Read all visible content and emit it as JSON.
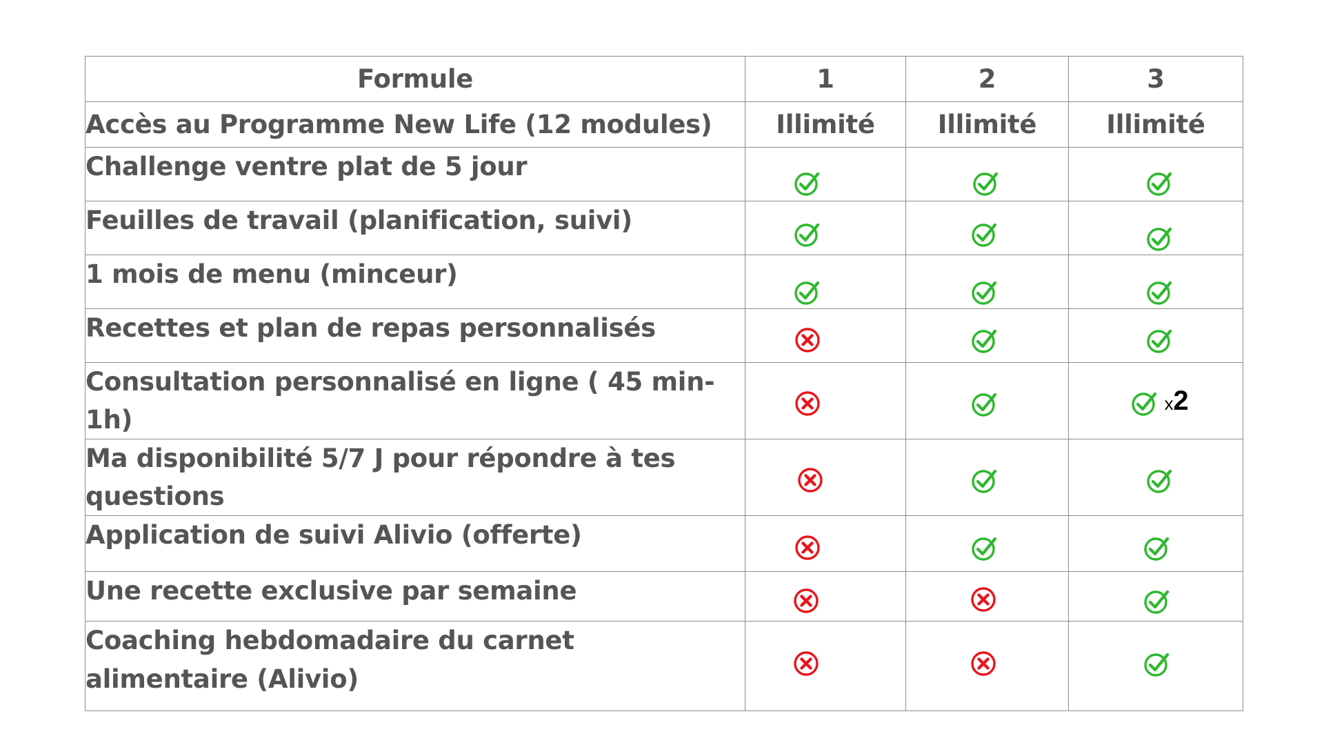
{
  "table": {
    "header": {
      "label": "Formule",
      "plans": [
        "1",
        "2",
        "3"
      ]
    },
    "rows": [
      {
        "label": "Accès au Programme New Life (12 modules)",
        "cells": [
          "Illimité",
          "Illimité",
          "Illimité"
        ]
      },
      {
        "label": "Challenge ventre plat de 5 jour",
        "cells": [
          "yes",
          "yes",
          "yes"
        ]
      },
      {
        "label": "Feuilles de travail (planification, suivi)",
        "cells": [
          "yes",
          "yes",
          "yes"
        ]
      },
      {
        "label": "1 mois de menu (minceur)",
        "cells": [
          "yes",
          "yes",
          "yes"
        ]
      },
      {
        "label": "Recettes et plan de repas personnalisés",
        "cells": [
          "no",
          "yes",
          "yes"
        ]
      },
      {
        "label": "Consultation personnalisé en ligne ( 45 min-1h)",
        "cells": [
          "no",
          "yes",
          "yes"
        ],
        "extra": {
          "prefix": "x",
          "value": "2"
        }
      },
      {
        "label": "Ma disponibilité 5/7 J pour répondre à tes questions",
        "cells": [
          "no",
          "yes",
          "yes"
        ]
      },
      {
        "label": "Application de suivi Alivio (offerte)",
        "cells": [
          "no",
          "yes",
          "yes"
        ]
      },
      {
        "label": "Une recette exclusive par semaine",
        "cells": [
          "no",
          "no",
          "yes"
        ]
      },
      {
        "label": "Coaching hebdomadaire du carnet alimentaire (Alivio)",
        "cells": [
          "no",
          "no",
          "yes"
        ]
      }
    ]
  },
  "icons": {
    "yes": "check-circle-icon",
    "no": "cross-circle-icon"
  },
  "colors": {
    "text": "#555555",
    "border": "#8c8c8c",
    "check": "#2eb82e",
    "cross": "#e8141c",
    "count": "#000000"
  }
}
